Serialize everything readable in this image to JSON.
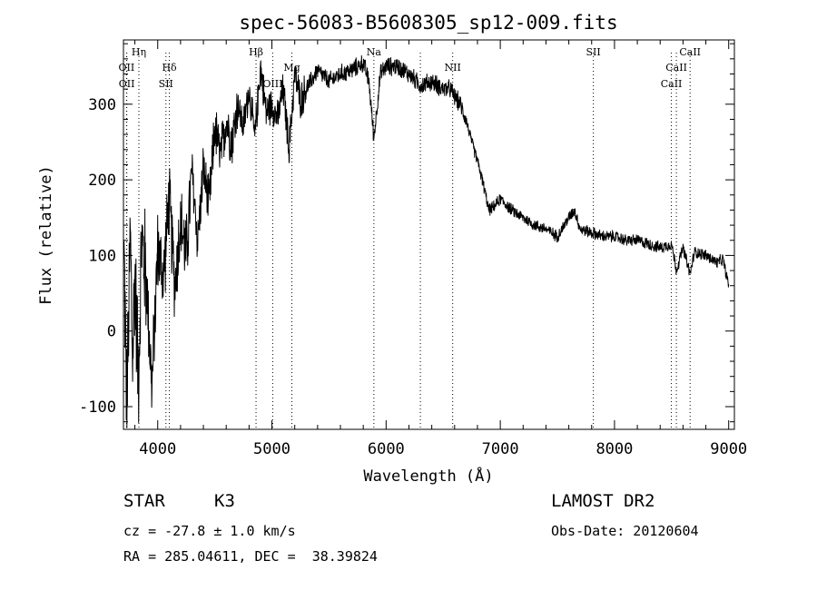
{
  "chart_data": {
    "type": "line",
    "title": "spec-56083-B5608305_sp12-009.fits",
    "xlabel": "Wavelength (Å)",
    "ylabel": "Flux (relative)",
    "xlim": [
      3700,
      9050
    ],
    "ylim": [
      -130,
      385
    ],
    "xticks": [
      4000,
      5000,
      6000,
      7000,
      8000,
      9000
    ],
    "yticks": [
      -100,
      0,
      100,
      200,
      300
    ],
    "grid": false,
    "series": [
      {
        "color": "#000000",
        "x": [
          3705,
          3730,
          3760,
          3780,
          3800,
          3830,
          3860,
          3900,
          3950,
          4000,
          4050,
          4100,
          4150,
          4200,
          4250,
          4300,
          4350,
          4400,
          4450,
          4500,
          4550,
          4600,
          4650,
          4700,
          4750,
          4800,
          4850,
          4900,
          4950,
          5000,
          5050,
          5100,
          5150,
          5200,
          5250,
          5300,
          5400,
          5500,
          5600,
          5700,
          5800,
          5850,
          5893,
          5950,
          6000,
          6100,
          6200,
          6300,
          6400,
          6500,
          6563,
          6600,
          6650,
          6700,
          6750,
          6800,
          6850,
          6900,
          6950,
          7000,
          7100,
          7200,
          7300,
          7400,
          7500,
          7600,
          7650,
          7700,
          7800,
          7900,
          8000,
          8100,
          8200,
          8300,
          8400,
          8500,
          8542,
          8600,
          8662,
          8700,
          8800,
          8900,
          8950,
          9000
        ],
        "y": [
          100,
          -110,
          130,
          -40,
          80,
          -60,
          120,
          70,
          -75,
          110,
          70,
          175,
          60,
          145,
          100,
          210,
          120,
          215,
          165,
          270,
          230,
          280,
          250,
          300,
          270,
          320,
          255,
          350,
          290,
          300,
          280,
          320,
          240,
          340,
          305,
          320,
          345,
          330,
          340,
          345,
          355,
          330,
          255,
          340,
          350,
          350,
          340,
          325,
          330,
          320,
          320,
          310,
          300,
          280,
          250,
          225,
          195,
          160,
          165,
          175,
          160,
          150,
          140,
          135,
          125,
          150,
          160,
          135,
          130,
          125,
          125,
          120,
          120,
          115,
          110,
          115,
          80,
          110,
          75,
          105,
          100,
          90,
          95,
          60
        ]
      }
    ],
    "spectral_lines": [
      {
        "label": "Hη",
        "x": 3835,
        "row": 0
      },
      {
        "label": "OII",
        "x": 3727,
        "row": 1
      },
      {
        "label": "OII",
        "x": 3729,
        "row": 2
      },
      {
        "label": "Hδ",
        "x": 4102,
        "row": 1
      },
      {
        "label": "SII",
        "x": 4072,
        "row": 2
      },
      {
        "label": "Hβ",
        "x": 4861,
        "row": 0
      },
      {
        "label": "Mg",
        "x": 5175,
        "row": 1
      },
      {
        "label": "OIII",
        "x": 5007,
        "row": 2
      },
      {
        "label": "Na",
        "x": 5893,
        "row": 0
      },
      {
        "label": "",
        "x": 6300,
        "row": 0
      },
      {
        "label": "NII",
        "x": 6583,
        "row": 1
      },
      {
        "label": "SII",
        "x": 7815,
        "row": 0
      },
      {
        "label": "CaII",
        "x": 8662,
        "row": 0
      },
      {
        "label": "CaII",
        "x": 8542,
        "row": 1
      },
      {
        "label": "CaII",
        "x": 8498,
        "row": 2
      }
    ]
  },
  "info": {
    "object_class": "STAR",
    "subclass": "K3",
    "velocity": "cz = -27.8 ± 1.0 km/s",
    "coords": "RA = 285.04611, DEC =  38.39824",
    "survey": "LAMOST DR2",
    "obs_date": "Obs-Date: 20120604"
  }
}
